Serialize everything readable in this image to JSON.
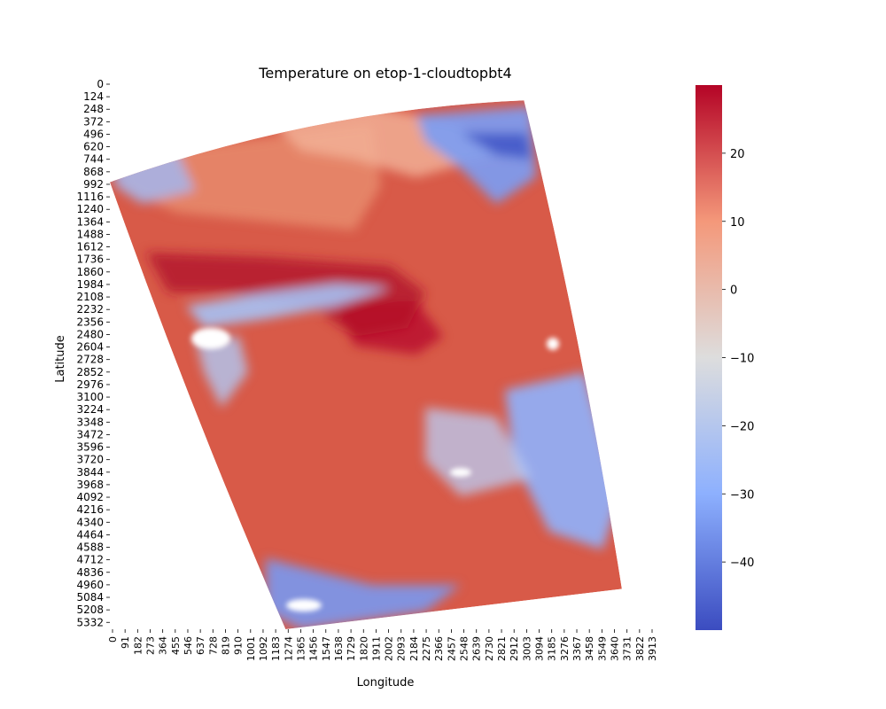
{
  "chart_data": {
    "type": "heatmap",
    "title": "Temperature on etop-1-cloudtopbt4",
    "xlabel": "Longitude",
    "ylabel": "Latitude",
    "x_ticks": [
      "0",
      "91",
      "182",
      "273",
      "364",
      "455",
      "546",
      "637",
      "728",
      "819",
      "910",
      "1001",
      "1092",
      "1183",
      "1274",
      "1365",
      "1456",
      "1547",
      "1638",
      "1729",
      "1820",
      "1911",
      "2002",
      "2093",
      "2184",
      "2275",
      "2366",
      "2457",
      "2548",
      "2639",
      "2730",
      "2821",
      "2912",
      "3003",
      "3094",
      "3185",
      "3276",
      "3367",
      "3458",
      "3549",
      "3640",
      "3731",
      "3822",
      "3913"
    ],
    "y_ticks": [
      "0",
      "124",
      "248",
      "372",
      "496",
      "620",
      "744",
      "868",
      "992",
      "1116",
      "1240",
      "1364",
      "1488",
      "1612",
      "1736",
      "1860",
      "1984",
      "2108",
      "2232",
      "2356",
      "2480",
      "2604",
      "2728",
      "2852",
      "2976",
      "3100",
      "3224",
      "3348",
      "3472",
      "3596",
      "3720",
      "3844",
      "3968",
      "4092",
      "4216",
      "4340",
      "4464",
      "4588",
      "4712",
      "4836",
      "4960",
      "5084",
      "5208",
      "5332"
    ],
    "xlim": [
      0,
      3913
    ],
    "ylim": [
      0,
      5400
    ],
    "colormap": "coolwarm",
    "colorbar": {
      "ticks": [
        "20",
        "10",
        "0",
        "−10",
        "−20",
        "−30",
        "−40"
      ],
      "tick_values": [
        20,
        10,
        0,
        -10,
        -20,
        -30,
        -40
      ],
      "range": [
        -50,
        30
      ]
    },
    "swath_corners": {
      "top_left": [
        0,
        970
      ],
      "top_right": [
        3003,
        160
      ],
      "bottom_right": [
        3713,
        5000
      ],
      "bottom_left": [
        1274,
        5400
      ]
    },
    "regions": [
      {
        "label": "background",
        "value": 22
      },
      {
        "label": "warm band",
        "value": 28
      },
      {
        "label": "cold cloud band north",
        "value": -20
      },
      {
        "label": "cold cloud east",
        "value": -35
      },
      {
        "label": "cold cloud south",
        "value": -30
      },
      {
        "label": "cloud-free north",
        "value": 14
      }
    ]
  }
}
